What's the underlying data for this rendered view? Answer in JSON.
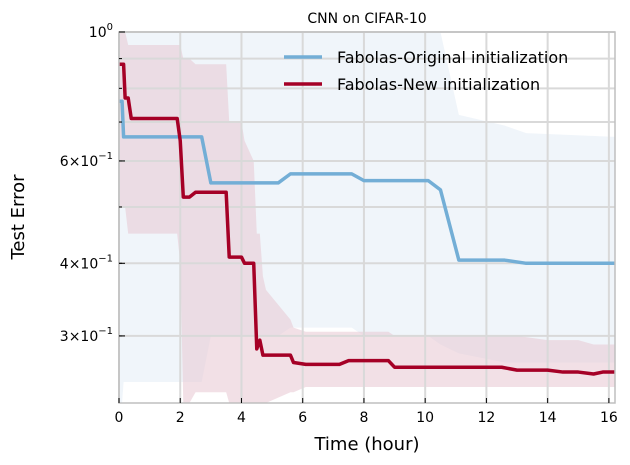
{
  "chart_data": {
    "type": "line",
    "title": "CNN on CIFAR-10",
    "xlabel": "Time (hour)",
    "ylabel": "Test Error",
    "xlim": [
      0,
      16.2
    ],
    "ylim": [
      0.23,
      1.0
    ],
    "yscale": "log",
    "grid": true,
    "legend_position": "top-right",
    "x_ticks": [
      0,
      2,
      4,
      6,
      8,
      10,
      12,
      14,
      16
    ],
    "x_tick_labels": [
      "0",
      "2",
      "4",
      "6",
      "8",
      "10",
      "12",
      "14",
      "16"
    ],
    "y_ticks": [
      1.0,
      0.6,
      0.4,
      0.3
    ],
    "y_tick_labels": [
      {
        "mantissa": "",
        "base": "10",
        "exp": "0"
      },
      {
        "mantissa": "6×",
        "base": "10",
        "exp": "−1"
      },
      {
        "mantissa": "4×",
        "base": "10",
        "exp": "−1"
      },
      {
        "mantissa": "3×",
        "base": "10",
        "exp": "−1"
      }
    ],
    "series": [
      {
        "name": "Fabolas-Original initialization",
        "color": "#73aed6",
        "band_color": "#dde9f4",
        "x": [
          0,
          0.1,
          0.15,
          2.7,
          3.0,
          5.2,
          5.6,
          7.6,
          8.0,
          10.1,
          10.5,
          11.1,
          12.6,
          13.3,
          16.2
        ],
        "y": [
          0.76,
          0.76,
          0.66,
          0.66,
          0.55,
          0.55,
          0.57,
          0.57,
          0.555,
          0.555,
          0.535,
          0.405,
          0.405,
          0.4,
          0.4
        ],
        "lower": [
          0.23,
          0.23,
          0.25,
          0.25,
          0.3,
          0.3,
          0.31,
          0.31,
          0.3,
          0.3,
          0.29,
          0.28,
          0.27,
          0.27,
          0.27
        ],
        "upper": [
          1.0,
          1.0,
          1.0,
          1.0,
          1.0,
          1.0,
          1.0,
          1.0,
          1.0,
          1.0,
          1.0,
          0.72,
          0.69,
          0.67,
          0.66
        ]
      },
      {
        "name": "Fabolas-New initialization",
        "color": "#a50026",
        "band_color": "#e8c7d2",
        "x": [
          0,
          0.15,
          0.2,
          0.3,
          0.4,
          1.9,
          2.0,
          2.1,
          2.3,
          2.5,
          3.5,
          3.6,
          4.0,
          4.1,
          4.4,
          4.5,
          4.6,
          4.7,
          4.8,
          5.6,
          5.7,
          6.1,
          6.5,
          7.2,
          7.5,
          8.8,
          9.0,
          10.0,
          11.0,
          12.5,
          13.0,
          14.0,
          14.5,
          15.0,
          15.5,
          15.8,
          16.2
        ],
        "y": [
          0.88,
          0.88,
          0.77,
          0.77,
          0.71,
          0.71,
          0.65,
          0.52,
          0.52,
          0.53,
          0.53,
          0.41,
          0.41,
          0.4,
          0.4,
          0.285,
          0.295,
          0.278,
          0.278,
          0.278,
          0.27,
          0.268,
          0.268,
          0.268,
          0.272,
          0.272,
          0.265,
          0.265,
          0.265,
          0.265,
          0.262,
          0.262,
          0.26,
          0.26,
          0.258,
          0.26,
          0.26
        ],
        "lower": [
          0.5,
          0.5,
          0.5,
          0.45,
          0.45,
          0.45,
          0.4,
          0.23,
          0.23,
          0.24,
          0.24,
          0.23,
          0.23,
          0.23,
          0.23,
          0.23,
          0.23,
          0.23,
          0.23,
          0.24,
          0.24,
          0.245,
          0.245,
          0.245,
          0.245,
          0.245,
          0.245,
          0.245,
          0.245,
          0.245,
          0.245,
          0.245,
          0.245,
          0.245,
          0.245,
          0.245,
          0.245
        ],
        "upper": [
          1.0,
          1.0,
          1.0,
          0.95,
          0.95,
          0.95,
          0.95,
          0.9,
          0.9,
          0.88,
          0.88,
          0.7,
          0.7,
          0.65,
          0.6,
          0.45,
          0.45,
          0.38,
          0.36,
          0.32,
          0.31,
          0.305,
          0.305,
          0.305,
          0.305,
          0.305,
          0.3,
          0.3,
          0.3,
          0.3,
          0.3,
          0.295,
          0.295,
          0.295,
          0.29,
          0.29,
          0.29
        ]
      }
    ]
  }
}
